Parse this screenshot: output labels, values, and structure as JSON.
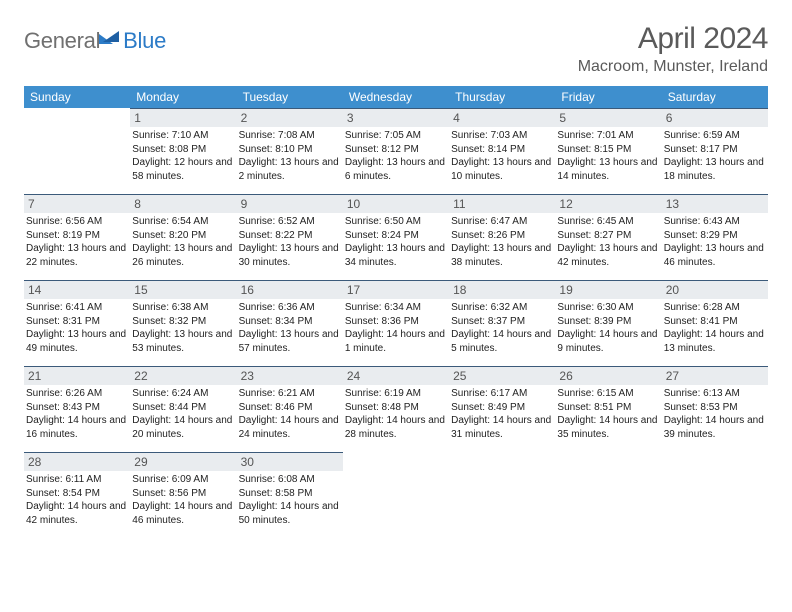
{
  "brand": {
    "part1": "General",
    "part2": "Blue"
  },
  "title": {
    "month": "April 2024",
    "location": "Macroom, Munster, Ireland"
  },
  "header_bg": "#3e8fce",
  "daybar_bg": "#e9ecef",
  "daybar_border": "#3b5a7a",
  "weekdays": [
    "Sunday",
    "Monday",
    "Tuesday",
    "Wednesday",
    "Thursday",
    "Friday",
    "Saturday"
  ],
  "weeks": [
    [
      {
        "n": "",
        "sunrise": "",
        "sunset": "",
        "daylight": ""
      },
      {
        "n": "1",
        "sunrise": "Sunrise: 7:10 AM",
        "sunset": "Sunset: 8:08 PM",
        "daylight": "Daylight: 12 hours and 58 minutes."
      },
      {
        "n": "2",
        "sunrise": "Sunrise: 7:08 AM",
        "sunset": "Sunset: 8:10 PM",
        "daylight": "Daylight: 13 hours and 2 minutes."
      },
      {
        "n": "3",
        "sunrise": "Sunrise: 7:05 AM",
        "sunset": "Sunset: 8:12 PM",
        "daylight": "Daylight: 13 hours and 6 minutes."
      },
      {
        "n": "4",
        "sunrise": "Sunrise: 7:03 AM",
        "sunset": "Sunset: 8:14 PM",
        "daylight": "Daylight: 13 hours and 10 minutes."
      },
      {
        "n": "5",
        "sunrise": "Sunrise: 7:01 AM",
        "sunset": "Sunset: 8:15 PM",
        "daylight": "Daylight: 13 hours and 14 minutes."
      },
      {
        "n": "6",
        "sunrise": "Sunrise: 6:59 AM",
        "sunset": "Sunset: 8:17 PM",
        "daylight": "Daylight: 13 hours and 18 minutes."
      }
    ],
    [
      {
        "n": "7",
        "sunrise": "Sunrise: 6:56 AM",
        "sunset": "Sunset: 8:19 PM",
        "daylight": "Daylight: 13 hours and 22 minutes."
      },
      {
        "n": "8",
        "sunrise": "Sunrise: 6:54 AM",
        "sunset": "Sunset: 8:20 PM",
        "daylight": "Daylight: 13 hours and 26 minutes."
      },
      {
        "n": "9",
        "sunrise": "Sunrise: 6:52 AM",
        "sunset": "Sunset: 8:22 PM",
        "daylight": "Daylight: 13 hours and 30 minutes."
      },
      {
        "n": "10",
        "sunrise": "Sunrise: 6:50 AM",
        "sunset": "Sunset: 8:24 PM",
        "daylight": "Daylight: 13 hours and 34 minutes."
      },
      {
        "n": "11",
        "sunrise": "Sunrise: 6:47 AM",
        "sunset": "Sunset: 8:26 PM",
        "daylight": "Daylight: 13 hours and 38 minutes."
      },
      {
        "n": "12",
        "sunrise": "Sunrise: 6:45 AM",
        "sunset": "Sunset: 8:27 PM",
        "daylight": "Daylight: 13 hours and 42 minutes."
      },
      {
        "n": "13",
        "sunrise": "Sunrise: 6:43 AM",
        "sunset": "Sunset: 8:29 PM",
        "daylight": "Daylight: 13 hours and 46 minutes."
      }
    ],
    [
      {
        "n": "14",
        "sunrise": "Sunrise: 6:41 AM",
        "sunset": "Sunset: 8:31 PM",
        "daylight": "Daylight: 13 hours and 49 minutes."
      },
      {
        "n": "15",
        "sunrise": "Sunrise: 6:38 AM",
        "sunset": "Sunset: 8:32 PM",
        "daylight": "Daylight: 13 hours and 53 minutes."
      },
      {
        "n": "16",
        "sunrise": "Sunrise: 6:36 AM",
        "sunset": "Sunset: 8:34 PM",
        "daylight": "Daylight: 13 hours and 57 minutes."
      },
      {
        "n": "17",
        "sunrise": "Sunrise: 6:34 AM",
        "sunset": "Sunset: 8:36 PM",
        "daylight": "Daylight: 14 hours and 1 minute."
      },
      {
        "n": "18",
        "sunrise": "Sunrise: 6:32 AM",
        "sunset": "Sunset: 8:37 PM",
        "daylight": "Daylight: 14 hours and 5 minutes."
      },
      {
        "n": "19",
        "sunrise": "Sunrise: 6:30 AM",
        "sunset": "Sunset: 8:39 PM",
        "daylight": "Daylight: 14 hours and 9 minutes."
      },
      {
        "n": "20",
        "sunrise": "Sunrise: 6:28 AM",
        "sunset": "Sunset: 8:41 PM",
        "daylight": "Daylight: 14 hours and 13 minutes."
      }
    ],
    [
      {
        "n": "21",
        "sunrise": "Sunrise: 6:26 AM",
        "sunset": "Sunset: 8:43 PM",
        "daylight": "Daylight: 14 hours and 16 minutes."
      },
      {
        "n": "22",
        "sunrise": "Sunrise: 6:24 AM",
        "sunset": "Sunset: 8:44 PM",
        "daylight": "Daylight: 14 hours and 20 minutes."
      },
      {
        "n": "23",
        "sunrise": "Sunrise: 6:21 AM",
        "sunset": "Sunset: 8:46 PM",
        "daylight": "Daylight: 14 hours and 24 minutes."
      },
      {
        "n": "24",
        "sunrise": "Sunrise: 6:19 AM",
        "sunset": "Sunset: 8:48 PM",
        "daylight": "Daylight: 14 hours and 28 minutes."
      },
      {
        "n": "25",
        "sunrise": "Sunrise: 6:17 AM",
        "sunset": "Sunset: 8:49 PM",
        "daylight": "Daylight: 14 hours and 31 minutes."
      },
      {
        "n": "26",
        "sunrise": "Sunrise: 6:15 AM",
        "sunset": "Sunset: 8:51 PM",
        "daylight": "Daylight: 14 hours and 35 minutes."
      },
      {
        "n": "27",
        "sunrise": "Sunrise: 6:13 AM",
        "sunset": "Sunset: 8:53 PM",
        "daylight": "Daylight: 14 hours and 39 minutes."
      }
    ],
    [
      {
        "n": "28",
        "sunrise": "Sunrise: 6:11 AM",
        "sunset": "Sunset: 8:54 PM",
        "daylight": "Daylight: 14 hours and 42 minutes."
      },
      {
        "n": "29",
        "sunrise": "Sunrise: 6:09 AM",
        "sunset": "Sunset: 8:56 PM",
        "daylight": "Daylight: 14 hours and 46 minutes."
      },
      {
        "n": "30",
        "sunrise": "Sunrise: 6:08 AM",
        "sunset": "Sunset: 8:58 PM",
        "daylight": "Daylight: 14 hours and 50 minutes."
      },
      {
        "n": "",
        "sunrise": "",
        "sunset": "",
        "daylight": ""
      },
      {
        "n": "",
        "sunrise": "",
        "sunset": "",
        "daylight": ""
      },
      {
        "n": "",
        "sunrise": "",
        "sunset": "",
        "daylight": ""
      },
      {
        "n": "",
        "sunrise": "",
        "sunset": "",
        "daylight": ""
      }
    ]
  ]
}
